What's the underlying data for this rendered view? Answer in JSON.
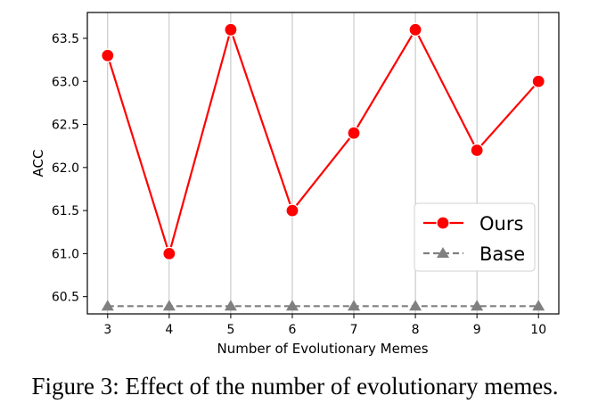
{
  "chart_data": {
    "type": "line",
    "title": "",
    "xlabel": "Number of Evolutionary Memes",
    "ylabel": "ACC",
    "x": [
      3,
      4,
      5,
      6,
      7,
      8,
      9,
      10
    ],
    "xlim": [
      2.67,
      10.33
    ],
    "ylim": [
      60.3,
      63.8
    ],
    "yticks": [
      60.5,
      61.0,
      61.5,
      62.0,
      62.5,
      63.0,
      63.5
    ],
    "ytick_labels": [
      "60.5",
      "61.0",
      "61.5",
      "62.0",
      "62.5",
      "63.0",
      "63.5"
    ],
    "xtick_labels": [
      "3",
      "4",
      "5",
      "6",
      "7",
      "8",
      "9",
      "10"
    ],
    "grid": "vertical",
    "legend_position": "lower-right",
    "series": [
      {
        "name": "Ours",
        "values": [
          63.3,
          61.0,
          63.6,
          61.5,
          62.4,
          63.6,
          62.2,
          63.0
        ],
        "color": "#ff0000",
        "marker": "circle",
        "line_style": "solid"
      },
      {
        "name": "Base",
        "values": [
          60.39,
          60.39,
          60.39,
          60.39,
          60.39,
          60.39,
          60.39,
          60.39
        ],
        "color": "#808080",
        "marker": "triangle",
        "line_style": "dashed"
      }
    ]
  },
  "caption": "Figure 3: Effect of the number of evolutionary memes."
}
